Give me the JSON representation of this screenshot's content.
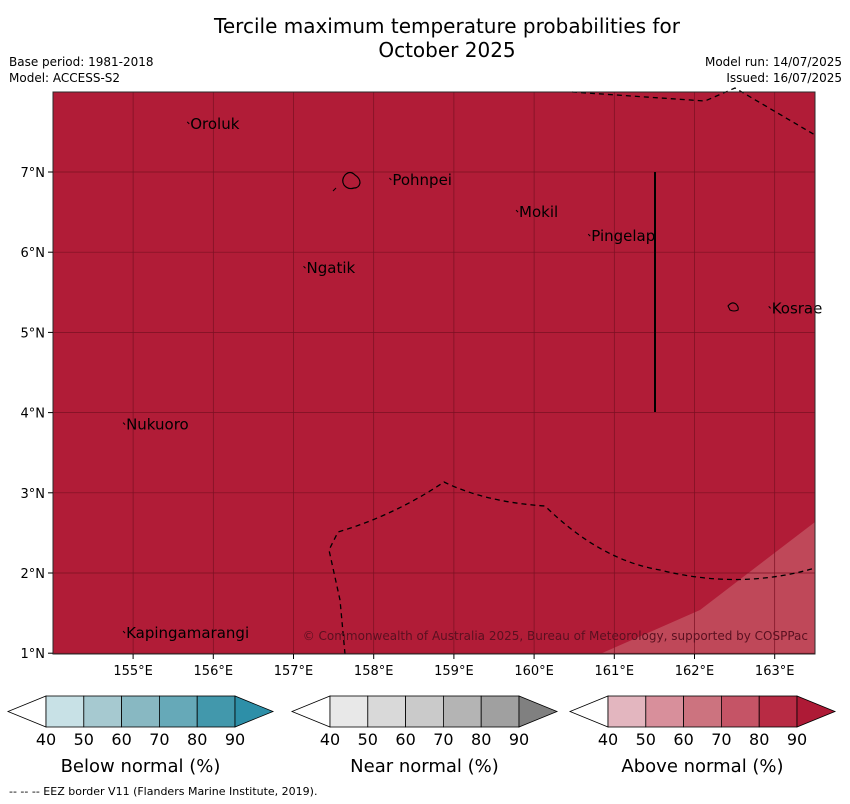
{
  "title_line1": "Tercile maximum temperature probabilities for",
  "title_line2": "October 2025",
  "meta_left": {
    "base_period": "Base period: 1981-2018",
    "model": "Model: ACCESS-S2"
  },
  "meta_right": {
    "model_run": "Model run: 14/07/2025",
    "issued": "Issued: 16/07/2025"
  },
  "colors": {
    "map_fill": "#b11c37",
    "weak_band": "#c2505f",
    "grid": "#7a1022",
    "below": [
      "#ffffff",
      "#c8e1e6",
      "#a6c9d0",
      "#88b8c2",
      "#66a9b8",
      "#4298ac",
      "#2d8fa8"
    ],
    "near": [
      "#ffffff",
      "#e8e8e8",
      "#d9d9d9",
      "#cacaca",
      "#b4b4b4",
      "#a0a0a0",
      "#808080"
    ],
    "above": [
      "#ffffff",
      "#e3b6bf",
      "#d88f9b",
      "#cc737f",
      "#c55466",
      "#b82b44",
      "#ae1a36"
    ]
  },
  "map": {
    "lon_ticks": [
      "155°E",
      "156°E",
      "157°E",
      "158°E",
      "159°E",
      "160°E",
      "161°E",
      "162°E",
      "163°E"
    ],
    "lat_ticks": [
      "7°N",
      "6°N",
      "5°N",
      "4°N",
      "3°N",
      "2°N",
      "1°N"
    ],
    "islands": [
      {
        "name": "Oroluk",
        "lon": 155.7,
        "lat": 7.6
      },
      {
        "name": "Pohnpei",
        "lon": 158.22,
        "lat": 6.9
      },
      {
        "name": "Mokil",
        "lon": 159.8,
        "lat": 6.5
      },
      {
        "name": "Pingelap",
        "lon": 160.7,
        "lat": 6.2
      },
      {
        "name": "Ngatik",
        "lon": 157.15,
        "lat": 5.8
      },
      {
        "name": "Kosrae",
        "lon": 162.95,
        "lat": 5.3
      },
      {
        "name": "Nukuoro",
        "lon": 154.9,
        "lat": 3.85
      },
      {
        "name": "Kapingamarangi",
        "lon": 154.9,
        "lat": 1.25
      }
    ],
    "copyright": "© Commonwealth of Australia 2025, Bureau of Meteorology, supported by COSPPac"
  },
  "legends": [
    {
      "caption": "Below normal (%)",
      "ticks": [
        "40",
        "50",
        "60",
        "70",
        "80",
        "90"
      ]
    },
    {
      "caption": "Near normal (%)",
      "ticks": [
        "40",
        "50",
        "60",
        "70",
        "80",
        "90"
      ]
    },
    {
      "caption": "Above normal (%)",
      "ticks": [
        "40",
        "50",
        "60",
        "70",
        "80",
        "90"
      ]
    }
  ],
  "footer": "--  --  -- EEZ border V11 (Flanders Marine Institute, 2019)."
}
